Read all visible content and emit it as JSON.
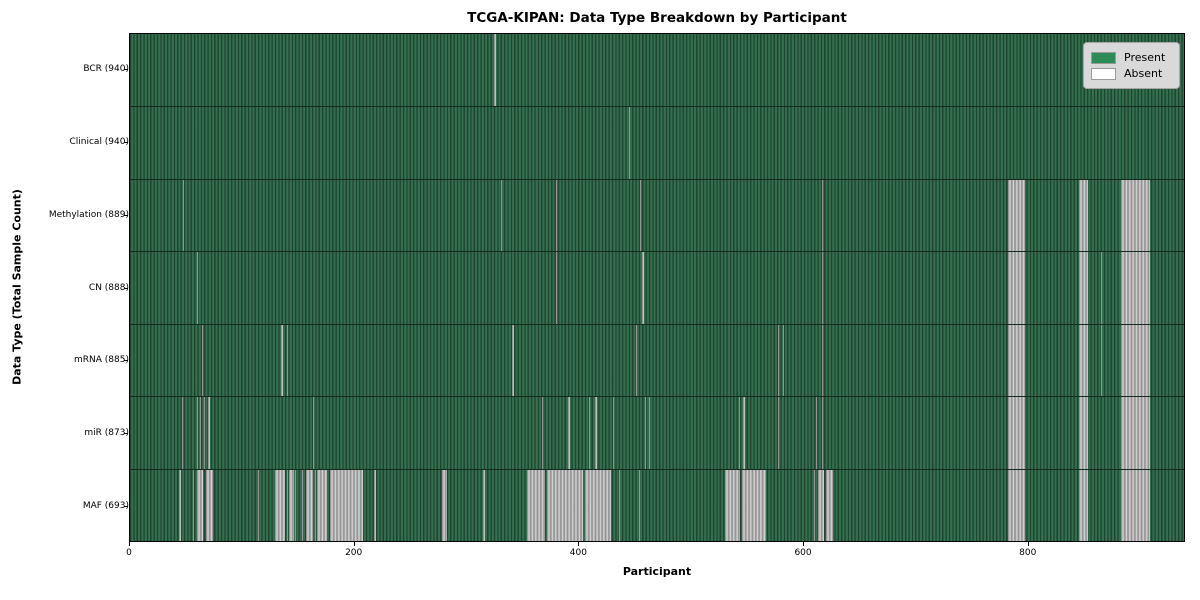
{
  "title": "TCGA-KIPAN: Data Type Breakdown by Participant",
  "xaxis": {
    "label": "Participant",
    "ticks": [
      0,
      200,
      400,
      600,
      800
    ],
    "range": [
      0,
      940
    ]
  },
  "yaxis": {
    "label": "Data Type (Total Sample Count)"
  },
  "legend": {
    "entries": [
      {
        "label": "Present",
        "color": "#2e8b57"
      },
      {
        "label": "Absent",
        "color": "#ffffff"
      }
    ]
  },
  "colors": {
    "present_fill": "#2e8b57",
    "present_dark_edge": "#1d452f",
    "absent_fill": "#ffffff",
    "absent_edge": "#8f8f8f",
    "legend_background": "#d9d9d9",
    "row_separator": "#132a1d"
  },
  "chart_data": {
    "type": "heatmap",
    "title": "TCGA-KIPAN: Data Type Breakdown by Participant",
    "xlabel": "Participant",
    "ylabel": "Data Type (Total Sample Count)",
    "x_ticks": [
      0,
      200,
      400,
      600,
      800
    ],
    "x_max": 940,
    "value_legend": {
      "present": "Present",
      "absent": "Absent"
    },
    "rows": [
      {
        "label": "BCR (940)",
        "data_type": "BCR",
        "total_samples": 940,
        "absent_ranges": [
          [
            325,
            326
          ]
        ]
      },
      {
        "label": "Clinical (940)",
        "data_type": "Clinical",
        "total_samples": 940,
        "absent_ranges": [
          [
            445,
            446
          ]
        ]
      },
      {
        "label": "Methylation (889)",
        "data_type": "Methylation",
        "total_samples": 889,
        "absent_ranges": [
          [
            47,
            48
          ],
          [
            331,
            332
          ],
          [
            380,
            381
          ],
          [
            455,
            456
          ],
          [
            617,
            618
          ],
          [
            783,
            798
          ],
          [
            846,
            854
          ],
          [
            884,
            910
          ]
        ]
      },
      {
        "label": "CN (888)",
        "data_type": "CN",
        "total_samples": 888,
        "absent_ranges": [
          [
            60,
            61
          ],
          [
            380,
            381
          ],
          [
            457,
            458
          ],
          [
            617,
            618
          ],
          [
            866,
            867
          ],
          [
            783,
            798
          ],
          [
            846,
            854
          ],
          [
            884,
            910
          ]
        ]
      },
      {
        "label": "mRNA (885)",
        "data_type": "mRNA",
        "total_samples": 885,
        "absent_ranges": [
          [
            64,
            65
          ],
          [
            135,
            136
          ],
          [
            140,
            141
          ],
          [
            341,
            342
          ],
          [
            451,
            452
          ],
          [
            578,
            579
          ],
          [
            582,
            583
          ],
          [
            617,
            618
          ],
          [
            866,
            867
          ],
          [
            783,
            798
          ],
          [
            846,
            854
          ],
          [
            884,
            910
          ]
        ]
      },
      {
        "label": "miR (873)",
        "data_type": "miR",
        "total_samples": 873,
        "absent_ranges": [
          [
            46,
            47
          ],
          [
            60,
            61
          ],
          [
            62,
            63
          ],
          [
            66,
            67
          ],
          [
            70,
            71
          ],
          [
            163,
            164
          ],
          [
            367,
            368
          ],
          [
            391,
            392
          ],
          [
            409,
            410
          ],
          [
            415,
            416
          ],
          [
            431,
            432
          ],
          [
            459,
            460
          ],
          [
            463,
            464
          ],
          [
            543,
            544
          ],
          [
            547,
            548
          ],
          [
            578,
            579
          ],
          [
            612,
            613
          ],
          [
            617,
            618
          ],
          [
            783,
            798
          ],
          [
            846,
            854
          ],
          [
            884,
            910
          ]
        ]
      },
      {
        "label": "MAF (693)",
        "data_type": "MAF",
        "total_samples": 693,
        "absent_ranges": [
          [
            44,
            45
          ],
          [
            56,
            57
          ],
          [
            60,
            65
          ],
          [
            68,
            74
          ],
          [
            114,
            115
          ],
          [
            129,
            138
          ],
          [
            140,
            141
          ],
          [
            142,
            146
          ],
          [
            147,
            148
          ],
          [
            153,
            154
          ],
          [
            157,
            163
          ],
          [
            165,
            166
          ],
          [
            167,
            176
          ],
          [
            178,
            208
          ],
          [
            218,
            219
          ],
          [
            278,
            283
          ],
          [
            315,
            317
          ],
          [
            354,
            370
          ],
          [
            372,
            404
          ],
          [
            406,
            429
          ],
          [
            436,
            437
          ],
          [
            454,
            455
          ],
          [
            531,
            544
          ],
          [
            546,
            567
          ],
          [
            610,
            611
          ],
          [
            614,
            619
          ],
          [
            621,
            627
          ],
          [
            783,
            798
          ],
          [
            846,
            854
          ],
          [
            884,
            910
          ]
        ]
      }
    ]
  }
}
